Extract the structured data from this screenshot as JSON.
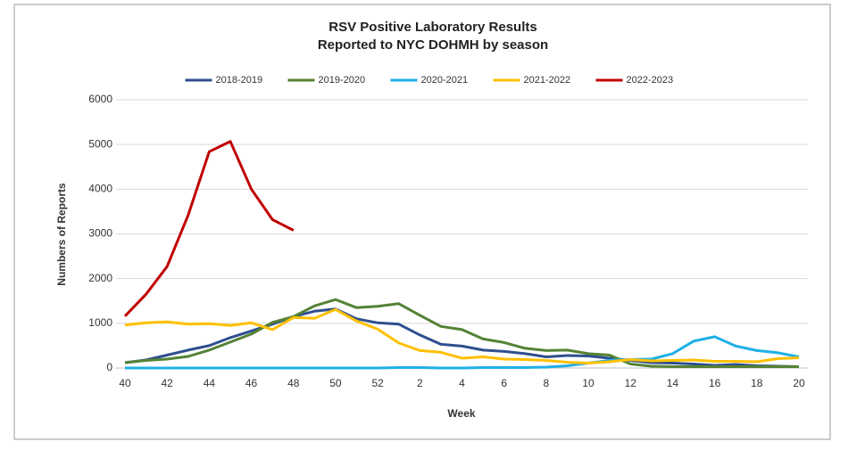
{
  "chart_data": {
    "type": "line",
    "title": "RSV Positive Laboratory Results",
    "subtitle": "Reported to NYC DOHMH by season",
    "x_label": "Week",
    "y_label": "Numbers of Reports",
    "categories": [
      "40",
      null,
      "42",
      null,
      "44",
      null,
      "46",
      null,
      "48",
      null,
      "50",
      null,
      "52",
      null,
      "2",
      null,
      "4",
      null,
      "6",
      null,
      "8",
      null,
      "10",
      null,
      "12",
      null,
      "14",
      null,
      "16",
      null,
      "18",
      null,
      "20"
    ],
    "series": [
      {
        "name": "2018-2019",
        "color": "#2e4f8f",
        "values": [
          120,
          180,
          290,
          400,
          500,
          680,
          830,
          980,
          1150,
          1270,
          1320,
          1100,
          1010,
          980,
          740,
          530,
          490,
          400,
          370,
          320,
          250,
          280,
          270,
          220,
          170,
          120,
          110,
          90,
          60,
          80,
          50,
          40,
          30
        ]
      },
      {
        "name": "2019-2020",
        "color": "#548235",
        "values": [
          120,
          170,
          200,
          260,
          400,
          580,
          760,
          1020,
          1150,
          1390,
          1530,
          1350,
          1380,
          1440,
          1180,
          930,
          860,
          650,
          570,
          440,
          390,
          400,
          320,
          290,
          90,
          40,
          30,
          30,
          30,
          30,
          30,
          30,
          30
        ]
      },
      {
        "name": "2020-2021",
        "color": "#1fb0e6",
        "values": [
          0,
          0,
          0,
          0,
          0,
          0,
          0,
          0,
          0,
          0,
          0,
          0,
          0,
          10,
          10,
          0,
          0,
          10,
          10,
          10,
          20,
          50,
          110,
          170,
          190,
          200,
          320,
          600,
          700,
          490,
          390,
          340,
          250
        ]
      },
      {
        "name": "2021-2022",
        "color": "#ffc000",
        "values": [
          960,
          1010,
          1030,
          980,
          990,
          950,
          1010,
          860,
          1130,
          1110,
          1310,
          1050,
          870,
          560,
          390,
          350,
          220,
          250,
          200,
          190,
          170,
          130,
          110,
          140,
          190,
          160,
          170,
          180,
          150,
          150,
          140,
          210,
          230
        ]
      },
      {
        "name": "2022-2023",
        "color": "#c00000",
        "values": [
          1160,
          1650,
          2270,
          3420,
          4840,
          5070,
          4000,
          3320,
          3080,
          null,
          null,
          null,
          null,
          null,
          null,
          null,
          null,
          null,
          null,
          null,
          null,
          null,
          null,
          null,
          null,
          null,
          null,
          null,
          null,
          null,
          null,
          null,
          null
        ]
      }
    ],
    "ylim": [
      0,
      6000
    ],
    "yticks": [
      0,
      1000,
      2000,
      3000,
      4000,
      5000,
      6000
    ],
    "grid": true
  }
}
